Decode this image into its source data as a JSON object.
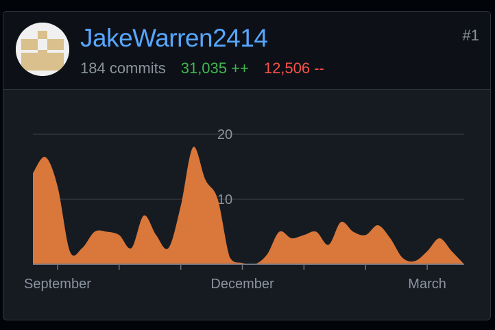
{
  "contributor": {
    "username": "JakeWarren2414",
    "commits": "184 commits",
    "additions": "31,035 ++",
    "deletions": "12,506 --",
    "rank": "#1"
  },
  "colors": {
    "area": "#da773a",
    "link": "#58a6ff",
    "additions": "#3fb950",
    "deletions": "#f85149"
  },
  "chart_data": {
    "type": "area",
    "title": "",
    "xlabel": "",
    "ylabel": "",
    "ylim": [
      0,
      20
    ],
    "yticks": [
      {
        "value": 10,
        "label": "10"
      },
      {
        "value": 20,
        "label": "20"
      }
    ],
    "xticks": [
      {
        "x": 2,
        "label": "September"
      },
      {
        "x": 7,
        "label": ""
      },
      {
        "x": 12,
        "label": ""
      },
      {
        "x": 17,
        "label": "December"
      },
      {
        "x": 22,
        "label": ""
      },
      {
        "x": 27,
        "label": ""
      },
      {
        "x": 32,
        "label": "March"
      }
    ],
    "x": [
      0,
      1,
      2,
      3,
      4,
      5,
      6,
      7,
      8,
      9,
      10,
      11,
      12,
      13,
      14,
      15,
      16,
      17,
      18,
      19,
      20,
      21,
      22,
      23,
      24,
      25,
      26,
      27,
      28,
      29,
      30,
      31,
      32,
      33,
      34,
      35
    ],
    "values": [
      14,
      16.5,
      12,
      2,
      2.5,
      5,
      5,
      4.5,
      2.5,
      7.5,
      4.5,
      2.5,
      9,
      18,
      13,
      10,
      1,
      0.2,
      0,
      1.5,
      5,
      4,
      4.5,
      5,
      3,
      6.5,
      5,
      4.5,
      6,
      4,
      1,
      0.5,
      2,
      4,
      2,
      0
    ]
  }
}
